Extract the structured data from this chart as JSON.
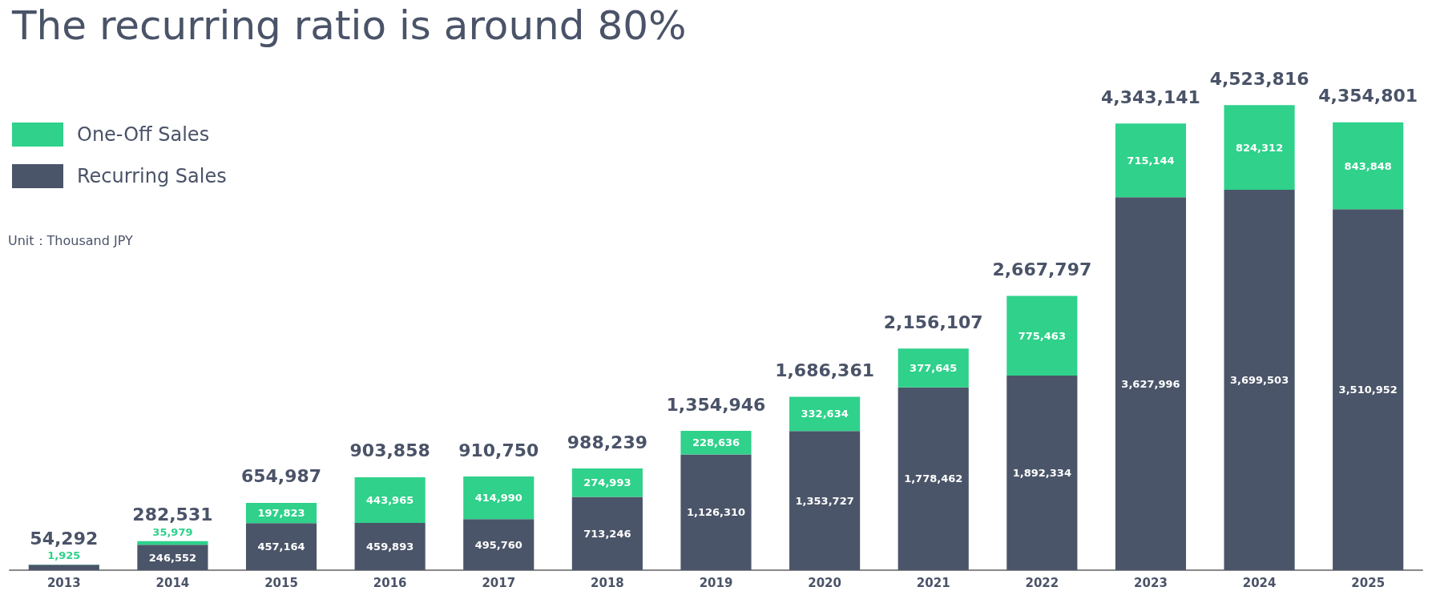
{
  "chart_data": {
    "type": "bar",
    "title": "The recurring ratio is around 80%",
    "stacked": true,
    "categories": [
      "2013",
      "2014",
      "2015",
      "2016",
      "2017",
      "2018",
      "2019",
      "2020",
      "2021",
      "2022",
      "2023",
      "2024",
      "2025"
    ],
    "series": [
      {
        "name": "Recurring Sales",
        "color": "#4b5569",
        "values": [
          52367,
          246552,
          457164,
          459893,
          495760,
          713246,
          1126310,
          1353727,
          1778462,
          1892334,
          3627996,
          3699503,
          3510952
        ],
        "value_labels": [
          null,
          "246,552",
          "457,164",
          "459,893",
          "495,760",
          "713,246",
          "1,126,310",
          "1,353,727",
          "1,778,462",
          "1,892,334",
          "3,627,996",
          "3,699,503",
          "3,510,952"
        ]
      },
      {
        "name": "One-Off Sales",
        "color": "#2fd18b",
        "values": [
          1925,
          35979,
          197823,
          443965,
          414990,
          274993,
          228636,
          332634,
          377645,
          775463,
          715144,
          824312,
          843848
        ],
        "value_labels": [
          "1,925",
          "35,979",
          "197,823",
          "443,965",
          "414,990",
          "274,993",
          "228,636",
          "332,634",
          "377,645",
          "775,463",
          "715,144",
          "824,312",
          "843,848"
        ]
      }
    ],
    "totals": [
      "54,292",
      "282,531",
      "654,987",
      "903,858",
      "910,750",
      "988,239",
      "1,354,946",
      "1,686,361",
      "2,156,107",
      "2,667,797",
      "4,343,141",
      "4,523,816",
      "4,354,801"
    ],
    "legend": "top left",
    "annotations": [
      "Unit：Thousand JPY"
    ]
  }
}
